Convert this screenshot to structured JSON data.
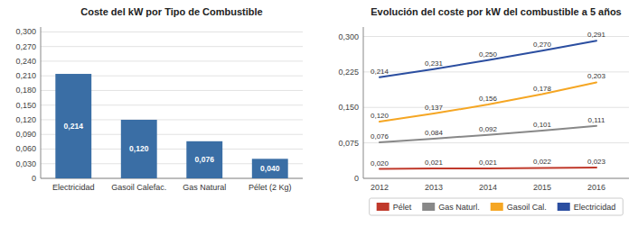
{
  "chart_data": [
    {
      "type": "bar",
      "title": "Coste del kW por Tipo de Combustible",
      "categories": [
        "Electricidad",
        "Gasoil Calefac.",
        "Gas Natural",
        "Pélet (2 Kg)"
      ],
      "values": [
        0.214,
        0.12,
        0.076,
        0.04
      ],
      "value_labels": [
        "0,214",
        "0,120",
        "0,076",
        "0,040"
      ],
      "data_labels": true,
      "color": "#3A6EA5",
      "ylim": [
        0,
        0.31
      ],
      "yticks": [
        0,
        {
          "value": 0.03,
          "label": "0,030"
        },
        {
          "value": 0.06,
          "label": "0,060"
        },
        {
          "value": 0.09,
          "label": "0,090"
        },
        {
          "value": 0.12,
          "label": "0,120"
        },
        {
          "value": 0.15,
          "label": "0,150"
        },
        {
          "value": 0.18,
          "label": "0,180"
        },
        {
          "value": 0.21,
          "label": "0,210"
        },
        {
          "value": 0.24,
          "label": "0,240"
        },
        {
          "value": 0.27,
          "label": "0,270"
        },
        {
          "value": 0.3,
          "label": "0,300"
        }
      ],
      "grid": true
    },
    {
      "type": "line",
      "title": "Evolución del coste por kW del combustible a 5 años",
      "x": [
        2012,
        2013,
        2014,
        2015,
        2016
      ],
      "xlim": [
        2011.7,
        2016.6
      ],
      "xticks": [
        2012,
        2013,
        2014,
        2015,
        2016
      ],
      "series": [
        {
          "name": "Electricidad",
          "color": "#2B4EA0",
          "values": [
            0.214,
            0.231,
            0.25,
            0.27,
            0.291
          ],
          "value_labels": [
            "0,214",
            "0,231",
            "0,250",
            "0,270",
            "0,291"
          ]
        },
        {
          "name": "Gasoil Cal.",
          "color": "#F5A623",
          "values": [
            0.12,
            0.137,
            0.156,
            0.178,
            0.203
          ],
          "value_labels": [
            "0,120",
            "0,137",
            "0,156",
            "0,178",
            "0,203"
          ]
        },
        {
          "name": "Gas Naturl.",
          "color": "#888888",
          "values": [
            0.076,
            0.084,
            0.092,
            0.101,
            0.111
          ],
          "value_labels": [
            "0,076",
            "0,084",
            "0,092",
            "0,101",
            "0,111"
          ]
        },
        {
          "name": "Pélet",
          "color": "#C0392B",
          "values": [
            0.02,
            0.021,
            0.021,
            0.022,
            0.023
          ],
          "value_labels": [
            "0,020",
            "0,021",
            "0,021",
            "0,022",
            "0,023"
          ]
        }
      ],
      "data_labels": true,
      "ylim": [
        0,
        0.32
      ],
      "yticks": [
        0,
        {
          "value": 0.075,
          "label": "0,075"
        },
        {
          "value": 0.15,
          "label": "0,150"
        },
        {
          "value": 0.225,
          "label": "0,225"
        },
        {
          "value": 0.3,
          "label": "0,300"
        }
      ],
      "grid": true,
      "legend": "bottom"
    }
  ]
}
